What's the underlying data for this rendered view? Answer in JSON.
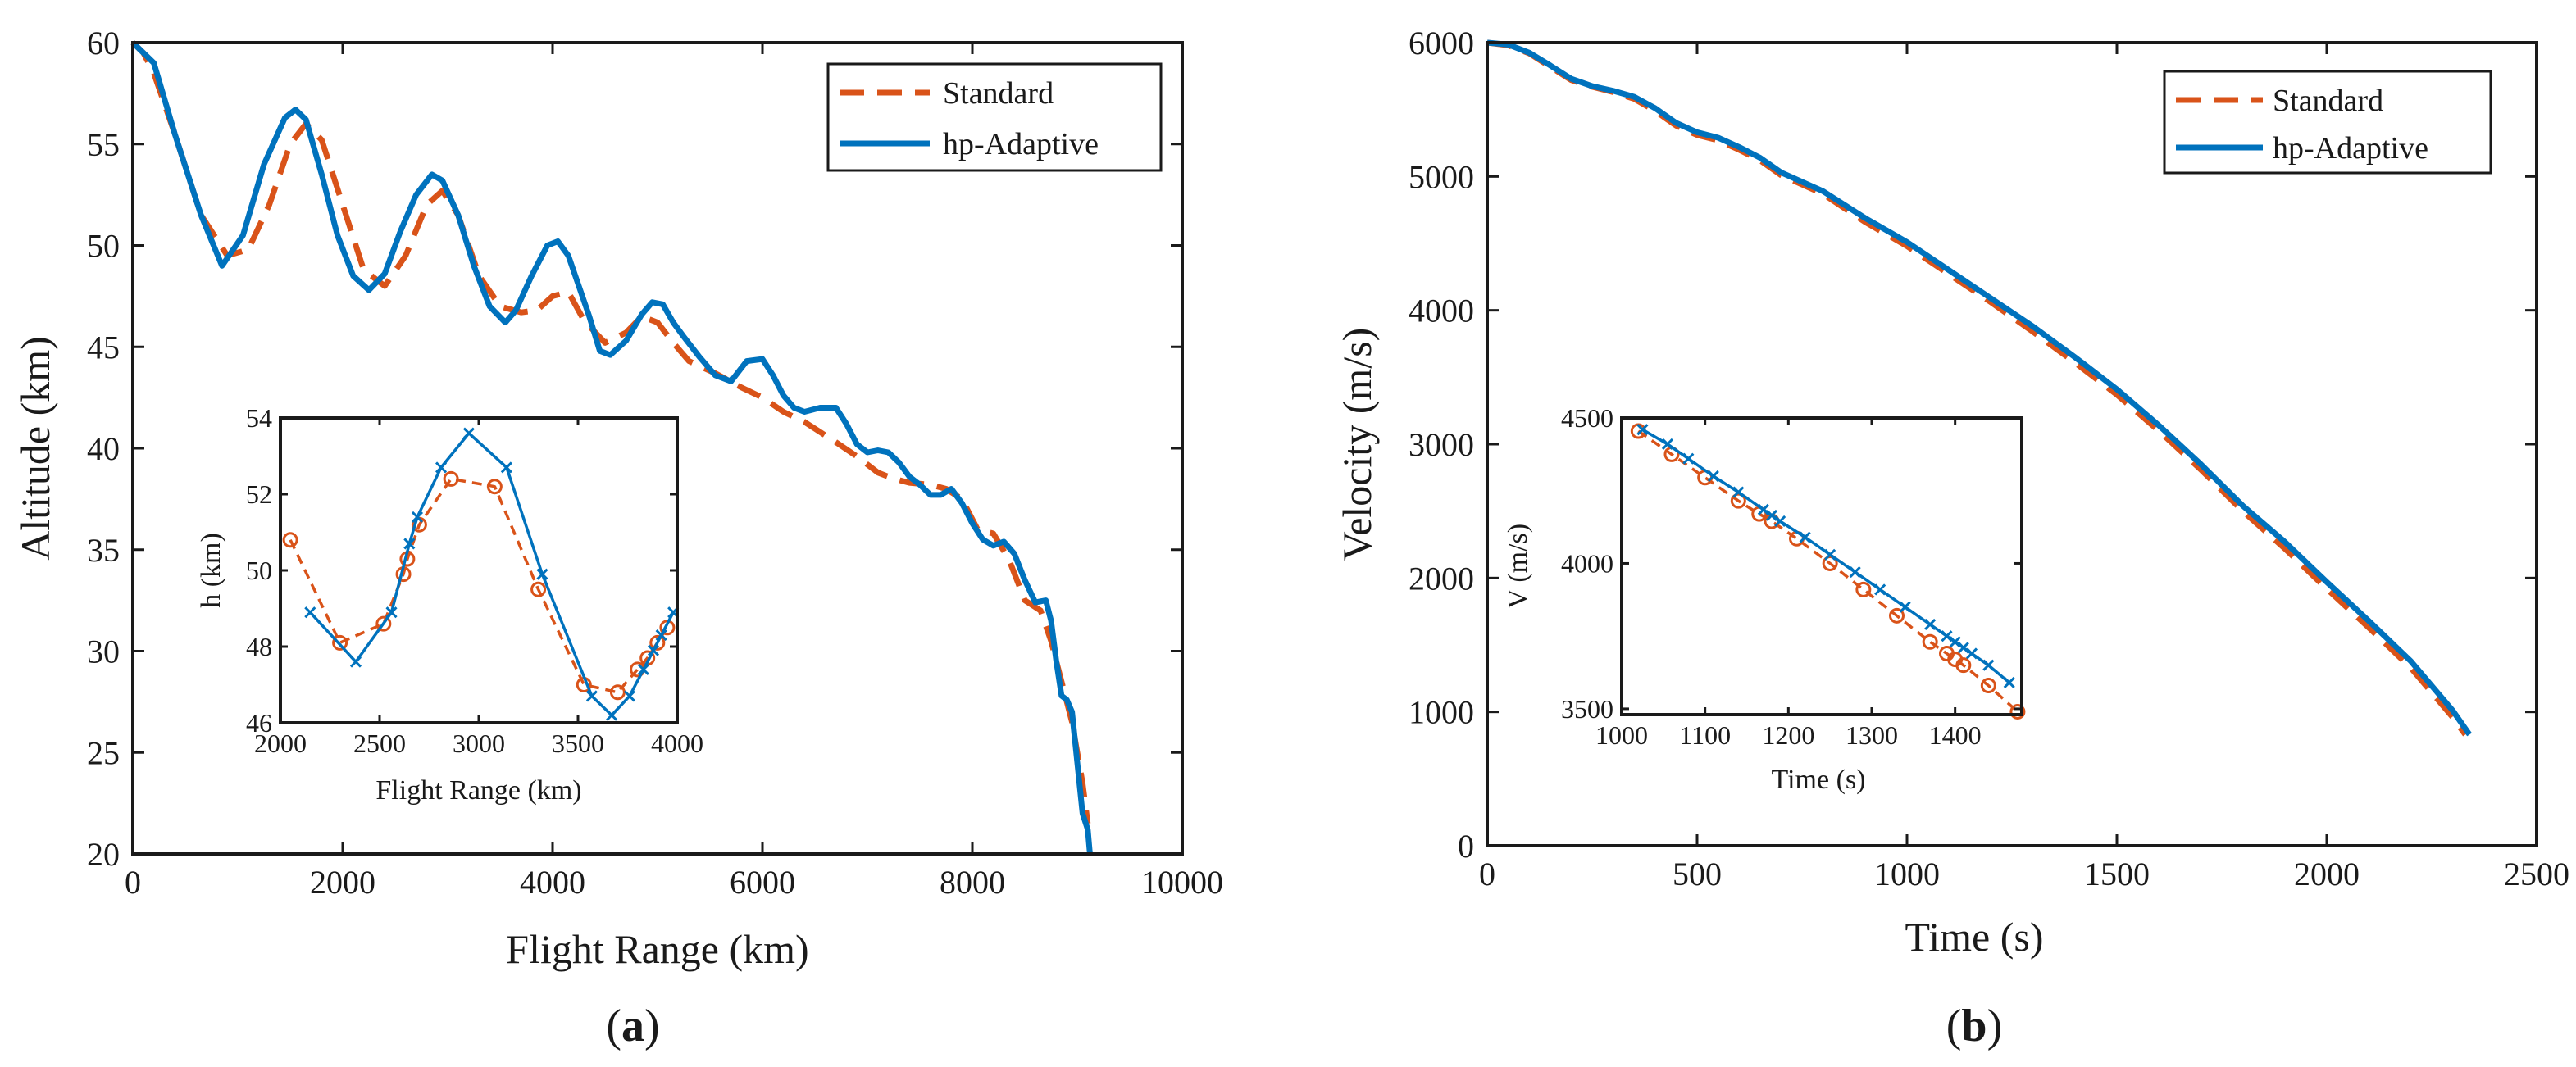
{
  "colors": {
    "standard": "#D95319",
    "adaptive": "#0072BD"
  },
  "chart_data": [
    {
      "id": "a",
      "type": "line",
      "panel_label": "a",
      "xlabel": "Flight Range (km)",
      "ylabel": "Altitude (km)",
      "xlim": [
        0,
        10000
      ],
      "ylim": [
        20,
        60
      ],
      "xticks": [
        0,
        2000,
        4000,
        6000,
        8000,
        10000
      ],
      "yticks": [
        20,
        25,
        30,
        35,
        40,
        45,
        50,
        55,
        60
      ],
      "legend": {
        "position": "top-right",
        "entries": [
          "Standard",
          "hp-Adaptive"
        ]
      },
      "series": [
        {
          "name": "Standard",
          "style": "dashed",
          "x": [
            0,
            100,
            200,
            400,
            650,
            900,
            1100,
            1300,
            1500,
            1650,
            1800,
            2000,
            2200,
            2400,
            2600,
            2800,
            2950,
            3100,
            3300,
            3500,
            3700,
            3850,
            4000,
            4150,
            4300,
            4500,
            4700,
            4850,
            5000,
            5150,
            5300,
            5550,
            5800,
            6000,
            6200,
            6400,
            6550,
            6700,
            6900,
            7100,
            7250,
            7400,
            7600,
            7750,
            7900,
            8050,
            8200,
            8350,
            8500,
            8650,
            8750,
            8850,
            8950,
            9050,
            9100
          ],
          "y": [
            60,
            59.5,
            58.5,
            55.5,
            51.5,
            49.5,
            49.8,
            52,
            55,
            56,
            55.2,
            52,
            48.8,
            48,
            49.5,
            52,
            52.7,
            51.5,
            48.5,
            47,
            46.7,
            46.8,
            47.5,
            47.7,
            46.3,
            45.2,
            45.7,
            46.5,
            46.2,
            45.2,
            44.3,
            43.7,
            43,
            42.5,
            41.8,
            41.3,
            40.8,
            40.3,
            39.6,
            38.8,
            38.5,
            38.3,
            38.2,
            38,
            37.5,
            36,
            35.8,
            34.5,
            32.5,
            32,
            30.5,
            28.5,
            26.5,
            23.5,
            21.5
          ]
        },
        {
          "name": "hp-Adaptive",
          "style": "solid",
          "x": [
            0,
            100,
            200,
            400,
            650,
            850,
            1050,
            1250,
            1450,
            1550,
            1650,
            1800,
            1950,
            2100,
            2250,
            2400,
            2550,
            2700,
            2850,
            2950,
            3100,
            3250,
            3400,
            3550,
            3650,
            3800,
            3950,
            4050,
            4150,
            4250,
            4350,
            4450,
            4550,
            4700,
            4850,
            4950,
            5050,
            5150,
            5250,
            5400,
            5550,
            5700,
            5850,
            6000,
            6100,
            6200,
            6300,
            6400,
            6550,
            6700,
            6800,
            6900,
            7000,
            7100,
            7200,
            7300,
            7400,
            7500,
            7600,
            7700,
            7800,
            7900,
            8000,
            8100,
            8200,
            8300,
            8400,
            8500,
            8600,
            8700,
            8750,
            8800,
            8850,
            8900,
            8950,
            9000,
            9050,
            9100,
            9120
          ],
          "y": [
            60,
            59.5,
            59,
            55.5,
            51.5,
            49,
            50.5,
            54,
            56.3,
            56.7,
            56.2,
            53.5,
            50.5,
            48.5,
            47.8,
            48.6,
            50.7,
            52.5,
            53.5,
            53.2,
            51.5,
            49,
            47,
            46.2,
            46.8,
            48.5,
            50,
            50.2,
            49.5,
            48,
            46.5,
            44.8,
            44.6,
            45.3,
            46.6,
            47.2,
            47.1,
            46.2,
            45.5,
            44.5,
            43.6,
            43.3,
            44.3,
            44.4,
            43.6,
            42.6,
            42,
            41.8,
            42,
            42,
            41.2,
            40.2,
            39.8,
            39.9,
            39.8,
            39.3,
            38.6,
            38.2,
            37.7,
            37.7,
            38,
            37.3,
            36.3,
            35.5,
            35.2,
            35.4,
            34.8,
            33.5,
            32.4,
            32.5,
            31.5,
            29.5,
            27.8,
            27.6,
            27,
            24.5,
            22,
            21.2,
            20
          ]
        }
      ],
      "inset": {
        "xlabel": "Flight Range (km)",
        "ylabel": "h (km)",
        "xlim": [
          2000,
          4000
        ],
        "ylim": [
          46,
          54
        ],
        "xticks": [
          2000,
          2500,
          3000,
          3500,
          4000
        ],
        "yticks": [
          46,
          48,
          50,
          52,
          54
        ],
        "series": [
          {
            "name": "Standard",
            "style": "dashed",
            "marker": "o",
            "x": [
              2050,
              2300,
              2520,
              2620,
              2640,
              2700,
              2860,
              3080,
              3300,
              3530,
              3700,
              3800,
              3850,
              3900,
              3950
            ],
            "y": [
              50.8,
              48.1,
              48.6,
              49.9,
              50.3,
              51.2,
              52.4,
              52.2,
              49.5,
              47.0,
              46.8,
              47.4,
              47.7,
              48.1,
              48.5
            ]
          },
          {
            "name": "hp-Adaptive",
            "style": "solid",
            "marker": "x",
            "x": [
              2150,
              2380,
              2560,
              2650,
              2690,
              2810,
              2950,
              3140,
              3320,
              3570,
              3670,
              3760,
              3830,
              3880,
              3920,
              3980
            ],
            "y": [
              48.9,
              47.6,
              48.9,
              50.7,
              51.4,
              52.7,
              53.6,
              52.7,
              49.9,
              46.7,
              46.2,
              46.7,
              47.4,
              47.9,
              48.3,
              48.9
            ]
          }
        ]
      }
    },
    {
      "id": "b",
      "type": "line",
      "panel_label": "b",
      "xlabel": "Time (s)",
      "ylabel": "Velocity (m/s)",
      "xlim": [
        0,
        2500
      ],
      "ylim": [
        0,
        6000
      ],
      "xticks": [
        0,
        500,
        1000,
        1500,
        2000,
        2500
      ],
      "yticks": [
        0,
        1000,
        2000,
        3000,
        4000,
        5000,
        6000
      ],
      "legend": {
        "position": "top-right",
        "entries": [
          "Standard",
          "hp-Adaptive"
        ]
      },
      "series": [
        {
          "name": "Standard",
          "style": "dashed",
          "x": [
            0,
            50,
            100,
            150,
            200,
            250,
            300,
            350,
            400,
            450,
            500,
            550,
            600,
            650,
            700,
            800,
            900,
            1000,
            1100,
            1200,
            1300,
            1400,
            1500,
            1600,
            1700,
            1800,
            1900,
            2000,
            2100,
            2200,
            2300,
            2330
          ],
          "y": [
            6000,
            5980,
            5920,
            5820,
            5720,
            5670,
            5630,
            5580,
            5490,
            5380,
            5310,
            5270,
            5200,
            5120,
            5010,
            4870,
            4660,
            4480,
            4270,
            4060,
            3840,
            3610,
            3370,
            3100,
            2810,
            2500,
            2220,
            1920,
            1630,
            1330,
            960,
            830
          ]
        },
        {
          "name": "hp-Adaptive",
          "style": "solid",
          "x": [
            0,
            50,
            100,
            150,
            200,
            250,
            300,
            350,
            400,
            450,
            500,
            550,
            600,
            650,
            700,
            800,
            900,
            1000,
            1100,
            1200,
            1300,
            1400,
            1500,
            1600,
            1700,
            1800,
            1900,
            2000,
            2100,
            2200,
            2300,
            2340
          ],
          "y": [
            6000,
            5985,
            5925,
            5830,
            5730,
            5675,
            5640,
            5595,
            5510,
            5400,
            5330,
            5290,
            5220,
            5140,
            5030,
            4890,
            4690,
            4510,
            4300,
            4090,
            3880,
            3650,
            3410,
            3140,
            2850,
            2540,
            2270,
            1970,
            1680,
            1380,
            1010,
            830
          ]
        }
      ],
      "inset": {
        "xlabel": "Time (s)",
        "ylabel": "V (m/s)",
        "xlim": [
          1000,
          1480
        ],
        "ylim": [
          3480,
          4500
        ],
        "xticks": [
          1000,
          1100,
          1200,
          1300,
          1400
        ],
        "yticks": [
          3500,
          4000,
          4500
        ],
        "series": [
          {
            "name": "Standard",
            "style": "dashed",
            "marker": "o",
            "x": [
              1020,
              1060,
              1100,
              1140,
              1165,
              1180,
              1210,
              1250,
              1290,
              1330,
              1370,
              1390,
              1400,
              1410,
              1440,
              1475
            ],
            "y": [
              4455,
              4375,
              4295,
              4215,
              4170,
              4145,
              4085,
              4000,
              3910,
              3820,
              3730,
              3690,
              3670,
              3650,
              3580,
              3490
            ]
          },
          {
            "name": "hp-Adaptive",
            "style": "solid",
            "marker": "x",
            "x": [
              1025,
              1055,
              1080,
              1110,
              1140,
              1170,
              1180,
              1190,
              1220,
              1250,
              1280,
              1310,
              1340,
              1370,
              1390,
              1400,
              1410,
              1420,
              1440,
              1465
            ],
            "y": [
              4460,
              4410,
              4360,
              4300,
              4245,
              4185,
              4165,
              4145,
              4090,
              4030,
              3970,
              3910,
              3850,
              3790,
              3750,
              3730,
              3710,
              3690,
              3650,
              3590
            ]
          }
        ]
      }
    }
  ]
}
